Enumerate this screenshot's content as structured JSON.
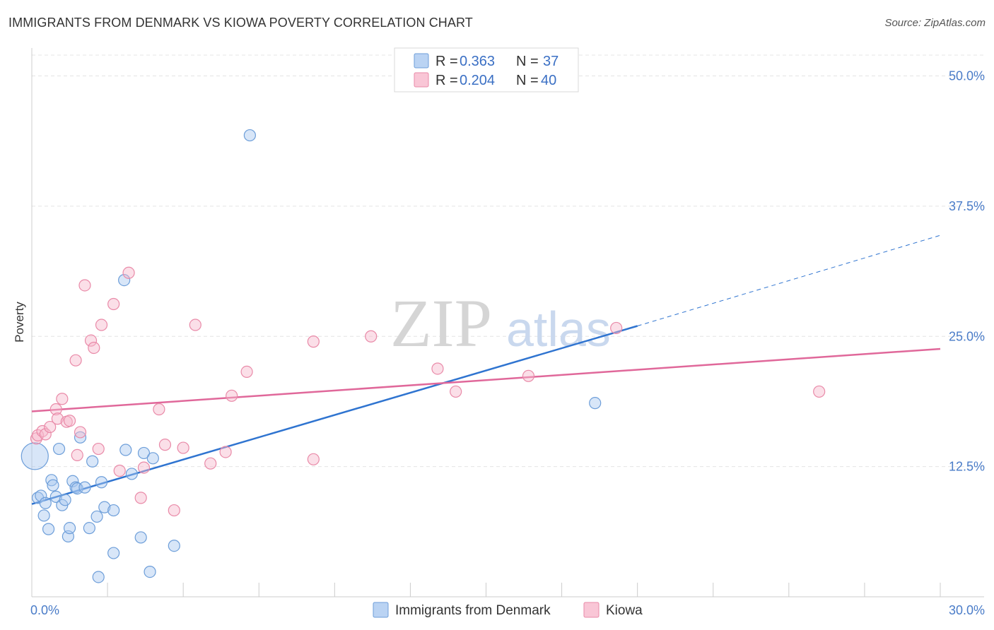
{
  "header": {
    "title": "IMMIGRANTS FROM DENMARK VS KIOWA POVERTY CORRELATION CHART",
    "source": "Source: ZipAtlas.com"
  },
  "watermark": {
    "zip": "ZIP",
    "atlas": "atlas"
  },
  "colors": {
    "blue_fill": "#a9c8f0",
    "blue_stroke": "#6d9ed9",
    "blue_line": "#2f74d0",
    "pink_fill": "#f7b8cc",
    "pink_stroke": "#e98aa8",
    "pink_line": "#e0689a",
    "grid": "#e4e4e4",
    "tick_text": "#4a7cc8"
  },
  "legend": {
    "rows": [
      {
        "series": "blue",
        "r_label": "R =",
        "r_value": "0.363",
        "n_label": "N =",
        "n_value": "37"
      },
      {
        "series": "pink",
        "r_label": "R =",
        "r_value": "0.204",
        "n_label": "N =",
        "n_value": "40"
      }
    ]
  },
  "chart_data": {
    "type": "scatter",
    "title": "IMMIGRANTS FROM DENMARK VS KIOWA POVERTY CORRELATION CHART",
    "xlabel": "",
    "ylabel": "Poverty",
    "xlim": [
      0,
      30
    ],
    "ylim": [
      0,
      52
    ],
    "x_tick_labels": [
      {
        "value": 0,
        "label": "0.0%"
      },
      {
        "value": 30,
        "label": "30.0%"
      }
    ],
    "y_tick_labels": [
      {
        "value": 12.5,
        "label": "12.5%"
      },
      {
        "value": 25,
        "label": "25.0%"
      },
      {
        "value": 37.5,
        "label": "37.5%"
      },
      {
        "value": 50,
        "label": "50.0%"
      }
    ],
    "grid": true,
    "legend_position": "top-center",
    "series": [
      {
        "name": "Immigrants from Denmark",
        "color_key": "blue",
        "R": 0.363,
        "N": 37,
        "trend": {
          "x0": 0,
          "y0": 8.9,
          "x1": 20,
          "y1": 26.0,
          "dashed_to_x": 30,
          "dashed_to_y": 34.7
        },
        "points": [
          {
            "x": 0.1,
            "y": 13.5,
            "big": true
          },
          {
            "x": 0.2,
            "y": 9.5
          },
          {
            "x": 0.3,
            "y": 9.7
          },
          {
            "x": 0.4,
            "y": 7.8
          },
          {
            "x": 0.45,
            "y": 9.0
          },
          {
            "x": 0.55,
            "y": 6.5
          },
          {
            "x": 0.65,
            "y": 11.2
          },
          {
            "x": 0.7,
            "y": 10.7
          },
          {
            "x": 0.8,
            "y": 9.6
          },
          {
            "x": 0.9,
            "y": 14.2
          },
          {
            "x": 1.0,
            "y": 8.8
          },
          {
            "x": 1.1,
            "y": 9.3
          },
          {
            "x": 1.2,
            "y": 5.8
          },
          {
            "x": 1.25,
            "y": 6.6
          },
          {
            "x": 1.35,
            "y": 11.1
          },
          {
            "x": 1.45,
            "y": 10.5
          },
          {
            "x": 1.5,
            "y": 10.4
          },
          {
            "x": 1.6,
            "y": 15.3
          },
          {
            "x": 1.75,
            "y": 10.5
          },
          {
            "x": 1.9,
            "y": 6.6
          },
          {
            "x": 2.0,
            "y": 13.0
          },
          {
            "x": 2.15,
            "y": 7.7
          },
          {
            "x": 2.2,
            "y": 1.9
          },
          {
            "x": 2.3,
            "y": 11.0
          },
          {
            "x": 2.4,
            "y": 8.6
          },
          {
            "x": 2.7,
            "y": 4.2
          },
          {
            "x": 2.7,
            "y": 8.3
          },
          {
            "x": 3.05,
            "y": 30.4
          },
          {
            "x": 3.1,
            "y": 14.1
          },
          {
            "x": 3.3,
            "y": 11.8
          },
          {
            "x": 3.6,
            "y": 5.7
          },
          {
            "x": 3.7,
            "y": 13.8
          },
          {
            "x": 3.9,
            "y": 2.4
          },
          {
            "x": 4.0,
            "y": 13.3
          },
          {
            "x": 4.7,
            "y": 4.9
          },
          {
            "x": 7.2,
            "y": 44.3
          },
          {
            "x": 18.6,
            "y": 18.6
          }
        ]
      },
      {
        "name": "Kiowa",
        "color_key": "pink",
        "R": 0.204,
        "N": 40,
        "trend": {
          "x0": 0,
          "y0": 17.8,
          "x1": 30,
          "y1": 23.8
        },
        "points": [
          {
            "x": 0.15,
            "y": 15.2
          },
          {
            "x": 0.2,
            "y": 15.5
          },
          {
            "x": 0.35,
            "y": 15.9
          },
          {
            "x": 0.45,
            "y": 15.6
          },
          {
            "x": 0.6,
            "y": 16.3
          },
          {
            "x": 0.8,
            "y": 18.0
          },
          {
            "x": 0.85,
            "y": 17.1
          },
          {
            "x": 1.0,
            "y": 19.0
          },
          {
            "x": 1.15,
            "y": 16.8
          },
          {
            "x": 1.25,
            "y": 16.9
          },
          {
            "x": 1.45,
            "y": 22.7
          },
          {
            "x": 1.5,
            "y": 13.6
          },
          {
            "x": 1.6,
            "y": 15.8
          },
          {
            "x": 1.75,
            "y": 29.9
          },
          {
            "x": 1.95,
            "y": 24.6
          },
          {
            "x": 2.05,
            "y": 23.9
          },
          {
            "x": 2.2,
            "y": 14.2
          },
          {
            "x": 2.3,
            "y": 26.1
          },
          {
            "x": 2.7,
            "y": 28.1
          },
          {
            "x": 2.9,
            "y": 12.1
          },
          {
            "x": 3.2,
            "y": 31.1
          },
          {
            "x": 3.6,
            "y": 9.5
          },
          {
            "x": 3.7,
            "y": 12.4
          },
          {
            "x": 4.2,
            "y": 18.0
          },
          {
            "x": 4.4,
            "y": 14.6
          },
          {
            "x": 4.7,
            "y": 8.3
          },
          {
            "x": 5.0,
            "y": 14.3
          },
          {
            "x": 5.4,
            "y": 26.1
          },
          {
            "x": 5.9,
            "y": 12.8
          },
          {
            "x": 6.4,
            "y": 13.9
          },
          {
            "x": 6.6,
            "y": 19.3
          },
          {
            "x": 7.1,
            "y": 21.6
          },
          {
            "x": 9.3,
            "y": 13.2
          },
          {
            "x": 9.3,
            "y": 24.5
          },
          {
            "x": 11.2,
            "y": 25.0
          },
          {
            "x": 13.4,
            "y": 21.9
          },
          {
            "x": 14.0,
            "y": 19.7
          },
          {
            "x": 16.4,
            "y": 21.2
          },
          {
            "x": 19.3,
            "y": 25.8
          },
          {
            "x": 26.0,
            "y": 19.7
          }
        ]
      }
    ]
  }
}
